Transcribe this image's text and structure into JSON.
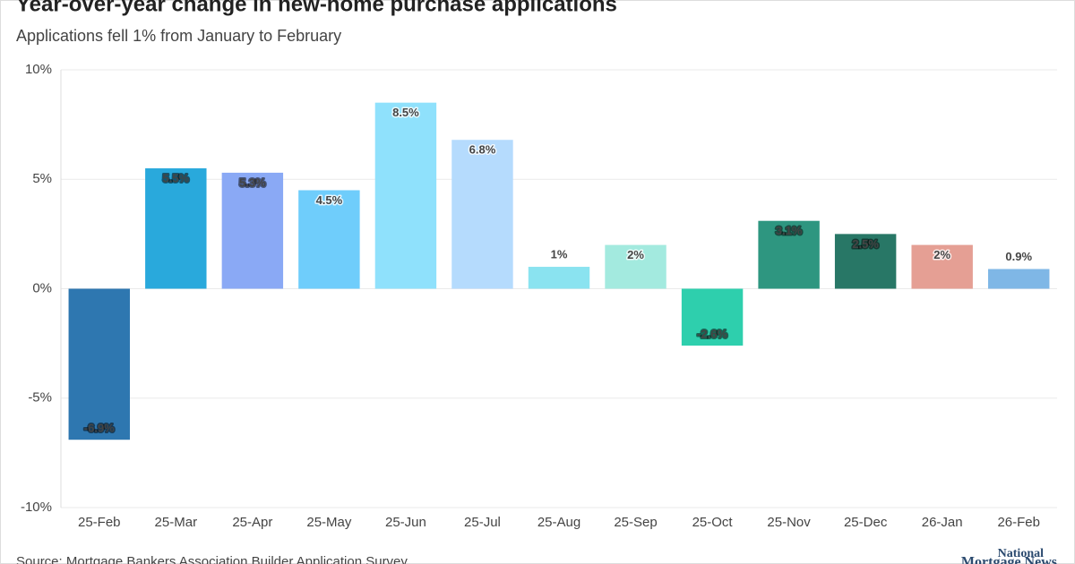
{
  "chart_data": {
    "type": "bar",
    "title": "Year-over-year change in new-home purchase applications",
    "subtitle": "Applications fell 1% from January to February",
    "categories": [
      "25-Feb",
      "25-Mar",
      "25-Apr",
      "25-May",
      "25-Jun",
      "25-Jul",
      "25-Aug",
      "25-Sep",
      "25-Oct",
      "25-Nov",
      "25-Dec",
      "26-Jan",
      "26-Feb"
    ],
    "values": [
      -6.9,
      5.5,
      5.3,
      4.5,
      8.5,
      6.8,
      1,
      2,
      -2.6,
      3.1,
      2.5,
      2,
      0.9
    ],
    "value_labels": [
      "-6.9%",
      "5.5%",
      "5.3%",
      "4.5%",
      "8.5%",
      "6.8%",
      "1%",
      "2%",
      "-2.6%",
      "3.1%",
      "2.5%",
      "2%",
      "0.9%"
    ],
    "colors": [
      "#2e77b0",
      "#29a9dc",
      "#8aa9f5",
      "#6fcdfb",
      "#8fe1fc",
      "#b5dbfd",
      "#8ae3f0",
      "#a3eadf",
      "#2ecfad",
      "#2e9680",
      "#287766",
      "#e59f94",
      "#7fb7e6"
    ],
    "ylim": [
      -10,
      10
    ],
    "yticks": [
      {
        "value": -10,
        "label": "-10%"
      },
      {
        "value": -5,
        "label": "-5%"
      },
      {
        "value": 0,
        "label": "0%"
      },
      {
        "value": 5,
        "label": "5%"
      },
      {
        "value": 10,
        "label": "10%"
      }
    ],
    "grid": true,
    "source": "Source: Mortgage Bankers Association Builder Application Survey",
    "logo": [
      "National",
      "Mortgage News"
    ]
  }
}
